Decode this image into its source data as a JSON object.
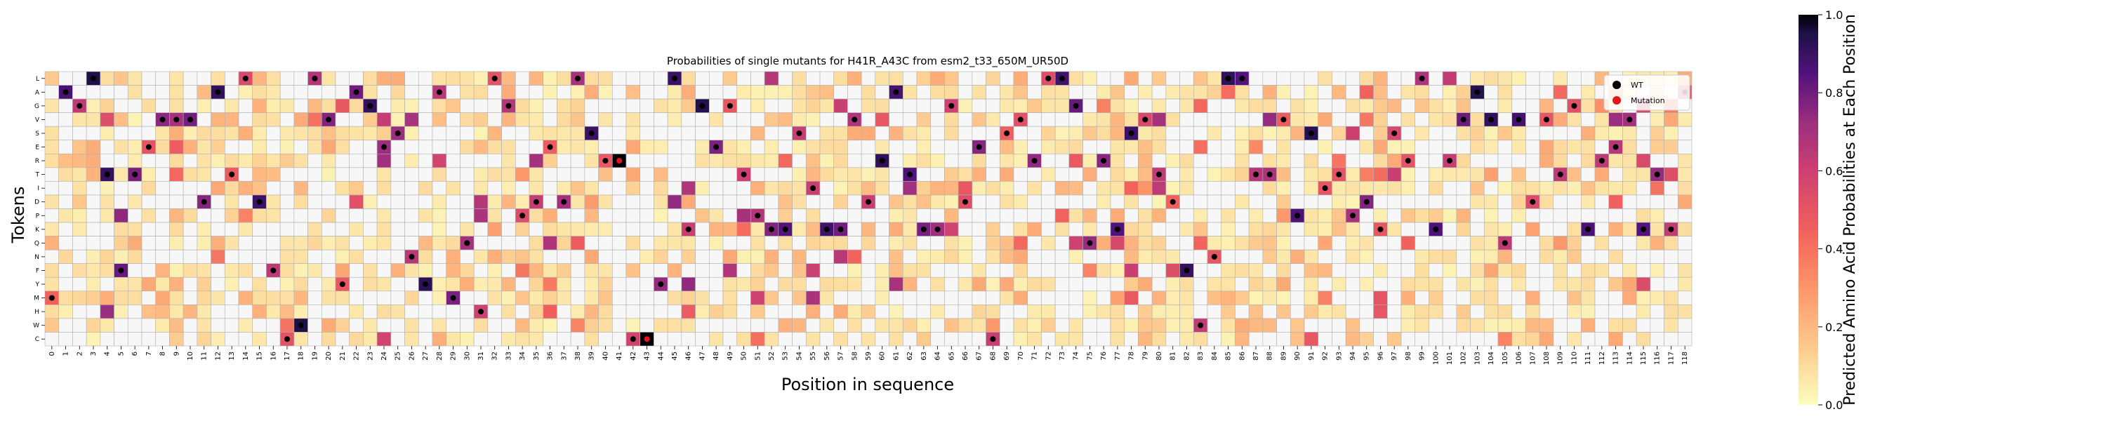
{
  "chart_data": {
    "type": "heatmap",
    "title": "Probabilities of single mutants for H41R_A43C from esm2_t33_650M_UR50D",
    "xlabel": "Position in sequence",
    "ylabel": "Tokens",
    "colorbar_label": "Predicted Amino Acid Probabilities at Each Position",
    "colorbar_ticks": [
      "0.0",
      "0.2",
      "0.4",
      "0.6",
      "0.8",
      "1.0"
    ],
    "colorbar_range": [
      0,
      1
    ],
    "colorscale": "magma_r",
    "tokens": [
      "L",
      "A",
      "G",
      "V",
      "S",
      "E",
      "R",
      "T",
      "I",
      "D",
      "P",
      "K",
      "Q",
      "N",
      "F",
      "Y",
      "M",
      "H",
      "W",
      "C"
    ],
    "positions": [
      0,
      1,
      2,
      3,
      4,
      5,
      6,
      7,
      8,
      9,
      10,
      11,
      12,
      13,
      14,
      15,
      16,
      17,
      18,
      19,
      20,
      21,
      22,
      23,
      24,
      25,
      26,
      27,
      28,
      29,
      30,
      31,
      32,
      33,
      34,
      35,
      36,
      37,
      38,
      39,
      40,
      41,
      42,
      43,
      44,
      45,
      46,
      47,
      48,
      49,
      50,
      51,
      52,
      53,
      54,
      55,
      56,
      57,
      58,
      59,
      60,
      61,
      62,
      63,
      64,
      65,
      66,
      67,
      68,
      69,
      70,
      71,
      72,
      73,
      74,
      75,
      76,
      77,
      78,
      79,
      80,
      81,
      82,
      83,
      84,
      85,
      86,
      87,
      88,
      89,
      90,
      91,
      92,
      93,
      94,
      95,
      96,
      97,
      98,
      99,
      100,
      101,
      102,
      103,
      104,
      105,
      106,
      107,
      108,
      109,
      110,
      111,
      112,
      113,
      114,
      115,
      116,
      117,
      118
    ],
    "wild_type": {
      "sequence_by_token": [
        16,
        1,
        2,
        0,
        7,
        14,
        7,
        5,
        3,
        3,
        3,
        9,
        1,
        7,
        0,
        9,
        14,
        19,
        18,
        0,
        3,
        15,
        1,
        2,
        5,
        4,
        13,
        15,
        1,
        16,
        12,
        17,
        0,
        2,
        10,
        9,
        5,
        9,
        0,
        4,
        6,
        13,
        19,
        6,
        15,
        0,
        11,
        2,
        5,
        2,
        7,
        10,
        11,
        11,
        4,
        8,
        11,
        11,
        3,
        9,
        6,
        1,
        7,
        11,
        11,
        2,
        9,
        5,
        19,
        4,
        3,
        6,
        0,
        0,
        2,
        12,
        6,
        11,
        4,
        3,
        7,
        9,
        14,
        18,
        13,
        0,
        0,
        7,
        7,
        3,
        10,
        4,
        8,
        7,
        10,
        9,
        11,
        4,
        6,
        0,
        11,
        6,
        3,
        1,
        3,
        12,
        3,
        9,
        3,
        7,
        2,
        11,
        6,
        5,
        3,
        11,
        7,
        11,
        1
      ],
      "note": "wild-type token index per position"
    },
    "mutations": [
      {
        "position": 41,
        "token": "R"
      },
      {
        "position": 43,
        "token": "C"
      }
    ],
    "legend": {
      "placement": "top-right",
      "entries": [
        {
          "label": "WT",
          "color": "#000000"
        },
        {
          "label": "Mutation",
          "color": "#e8141b"
        }
      ]
    },
    "random_seed": 7
  }
}
